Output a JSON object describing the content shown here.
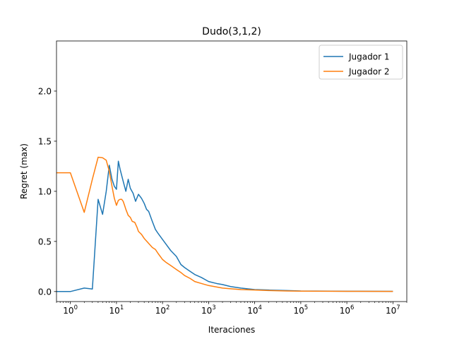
{
  "chart_data": {
    "type": "line",
    "title": "Dudo(3,1,2)",
    "xlabel": "Iteraciones",
    "ylabel": "Regret (max)",
    "xscale": "log",
    "xlim": [
      0.5,
      20000000
    ],
    "ylim": [
      -0.1,
      2.5
    ],
    "x_ticks": [
      {
        "value": 1,
        "base": "10",
        "exp": "0"
      },
      {
        "value": 10,
        "base": "10",
        "exp": "1"
      },
      {
        "value": 100,
        "base": "10",
        "exp": "2"
      },
      {
        "value": 1000,
        "base": "10",
        "exp": "3"
      },
      {
        "value": 10000,
        "base": "10",
        "exp": "4"
      },
      {
        "value": 100000,
        "base": "10",
        "exp": "5"
      },
      {
        "value": 1000000,
        "base": "10",
        "exp": "6"
      },
      {
        "value": 10000000,
        "base": "10",
        "exp": "7"
      }
    ],
    "y_ticks": [
      {
        "value": 0,
        "label": "0.0"
      },
      {
        "value": 0.5,
        "label": "0.5"
      },
      {
        "value": 1,
        "label": "1.0"
      },
      {
        "value": 1.5,
        "label": "1.5"
      },
      {
        "value": 2,
        "label": "2.0"
      }
    ],
    "grid": false,
    "legend_position": "top-right",
    "series": [
      {
        "name": "Jugador 1",
        "color": "#1f77b4",
        "points": [
          [
            0.5,
            0.0
          ],
          [
            1,
            0.0
          ],
          [
            2,
            0.035
          ],
          [
            3,
            0.025
          ],
          [
            4,
            0.92
          ],
          [
            5,
            0.77
          ],
          [
            6,
            1.0
          ],
          [
            7,
            1.26
          ],
          [
            8,
            1.12
          ],
          [
            9,
            1.05
          ],
          [
            10,
            1.02
          ],
          [
            11,
            1.3
          ],
          [
            12,
            1.22
          ],
          [
            14,
            1.1
          ],
          [
            16,
            1.0
          ],
          [
            18,
            1.12
          ],
          [
            20,
            1.03
          ],
          [
            23,
            0.98
          ],
          [
            26,
            0.9
          ],
          [
            30,
            0.97
          ],
          [
            35,
            0.93
          ],
          [
            40,
            0.88
          ],
          [
            45,
            0.82
          ],
          [
            50,
            0.8
          ],
          [
            60,
            0.7
          ],
          [
            70,
            0.62
          ],
          [
            80,
            0.58
          ],
          [
            100,
            0.52
          ],
          [
            120,
            0.47
          ],
          [
            150,
            0.41
          ],
          [
            200,
            0.35
          ],
          [
            250,
            0.27
          ],
          [
            300,
            0.24
          ],
          [
            400,
            0.2
          ],
          [
            500,
            0.17
          ],
          [
            700,
            0.14
          ],
          [
            1000,
            0.1
          ],
          [
            1500,
            0.08
          ],
          [
            2000,
            0.07
          ],
          [
            3000,
            0.05
          ],
          [
            5000,
            0.035
          ],
          [
            10000,
            0.02
          ],
          [
            20000,
            0.015
          ],
          [
            50000,
            0.01
          ],
          [
            100000,
            0.006
          ],
          [
            1000000,
            0.003
          ],
          [
            10000000,
            0.002
          ]
        ]
      },
      {
        "name": "Jugador 2",
        "color": "#ff7f0e",
        "points": [
          [
            0.5,
            1.185
          ],
          [
            1,
            1.185
          ],
          [
            2,
            0.79
          ],
          [
            3,
            1.12
          ],
          [
            4,
            1.34
          ],
          [
            5,
            1.335
          ],
          [
            6,
            1.31
          ],
          [
            7,
            1.2
          ],
          [
            8,
            1.05
          ],
          [
            9,
            0.93
          ],
          [
            10,
            0.86
          ],
          [
            11,
            0.91
          ],
          [
            12,
            0.92
          ],
          [
            13,
            0.92
          ],
          [
            14,
            0.9
          ],
          [
            15,
            0.86
          ],
          [
            16,
            0.82
          ],
          [
            18,
            0.76
          ],
          [
            20,
            0.74
          ],
          [
            22,
            0.7
          ],
          [
            25,
            0.69
          ],
          [
            28,
            0.64
          ],
          [
            30,
            0.6
          ],
          [
            35,
            0.57
          ],
          [
            40,
            0.53
          ],
          [
            50,
            0.48
          ],
          [
            60,
            0.44
          ],
          [
            70,
            0.42
          ],
          [
            80,
            0.38
          ],
          [
            100,
            0.32
          ],
          [
            120,
            0.29
          ],
          [
            150,
            0.26
          ],
          [
            200,
            0.22
          ],
          [
            250,
            0.19
          ],
          [
            300,
            0.16
          ],
          [
            400,
            0.13
          ],
          [
            500,
            0.1
          ],
          [
            700,
            0.08
          ],
          [
            1000,
            0.06
          ],
          [
            1500,
            0.045
          ],
          [
            2000,
            0.035
          ],
          [
            3000,
            0.028
          ],
          [
            5000,
            0.02
          ],
          [
            10000,
            0.015
          ],
          [
            20000,
            0.01
          ],
          [
            50000,
            0.006
          ],
          [
            100000,
            0.004
          ],
          [
            1000000,
            0.002
          ],
          [
            10000000,
            0.001
          ]
        ]
      }
    ]
  }
}
